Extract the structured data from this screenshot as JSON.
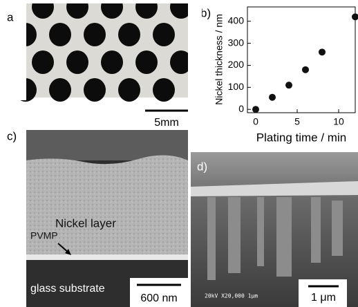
{
  "panels": {
    "a": {
      "label": "a)",
      "scale_bar": "5mm"
    },
    "c": {
      "label": "c)",
      "layer": "Nickel layer",
      "interlayer": "PVMP",
      "substrate": "glass substrate",
      "scale_bar": "600 nm"
    },
    "d": {
      "label": "d)",
      "scale_bar": "1 μm",
      "sem_info": "20kV  X20,000   1μm"
    }
  },
  "chart_data": {
    "type": "scatter",
    "panel_label": "b)",
    "x_label": "Plating time / min",
    "y_label": "Nickel thickness / nm",
    "x": [
      0,
      2,
      4,
      6,
      8,
      12
    ],
    "values": [
      0,
      55,
      110,
      180,
      260,
      420
    ],
    "color": "#111111",
    "xlim": [
      -1,
      12
    ],
    "ylim": [
      -15,
      465
    ],
    "xticks": [
      0,
      5,
      10
    ],
    "yticks": [
      0,
      100,
      200,
      300,
      400
    ]
  }
}
